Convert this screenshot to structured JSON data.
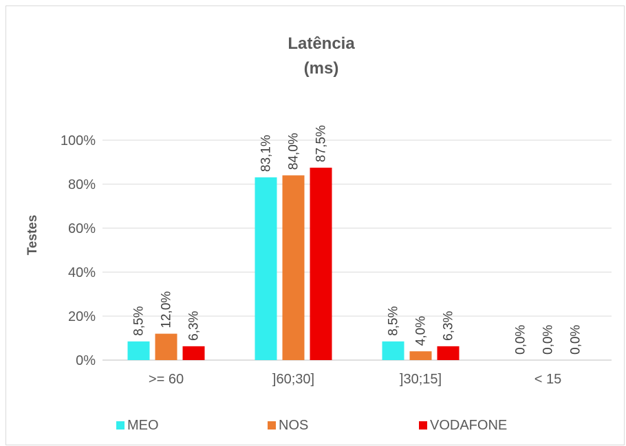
{
  "chart_data": {
    "type": "bar",
    "title": "Latência",
    "subtitle": "(ms)",
    "xlabel": "",
    "ylabel": "Testes",
    "ylim": [
      0,
      100
    ],
    "yticks": [
      "0%",
      "20%",
      "40%",
      "60%",
      "80%",
      "100%"
    ],
    "ytick_values": [
      0,
      20,
      40,
      60,
      80,
      100
    ],
    "grid": true,
    "legend_position": "bottom",
    "categories": [
      ">= 60",
      "]60;30]",
      "]30;15]",
      "< 15"
    ],
    "series": [
      {
        "name": "MEO",
        "color": "#33eeee",
        "values": [
          8.5,
          83.1,
          8.5,
          0.0
        ],
        "labels": [
          "8,5%",
          "83,1%",
          "8,5%",
          "0,0%"
        ]
      },
      {
        "name": "NOS",
        "color": "#ed7d31",
        "values": [
          12.0,
          84.0,
          4.0,
          0.0
        ],
        "labels": [
          "12,0%",
          "84,0%",
          "4,0%",
          "0,0%"
        ]
      },
      {
        "name": "VODAFONE",
        "color": "#ee0000",
        "values": [
          6.3,
          87.5,
          6.3,
          0.0
        ],
        "labels": [
          "6,3%",
          "87,5%",
          "6,3%",
          "0,0%"
        ]
      }
    ]
  }
}
